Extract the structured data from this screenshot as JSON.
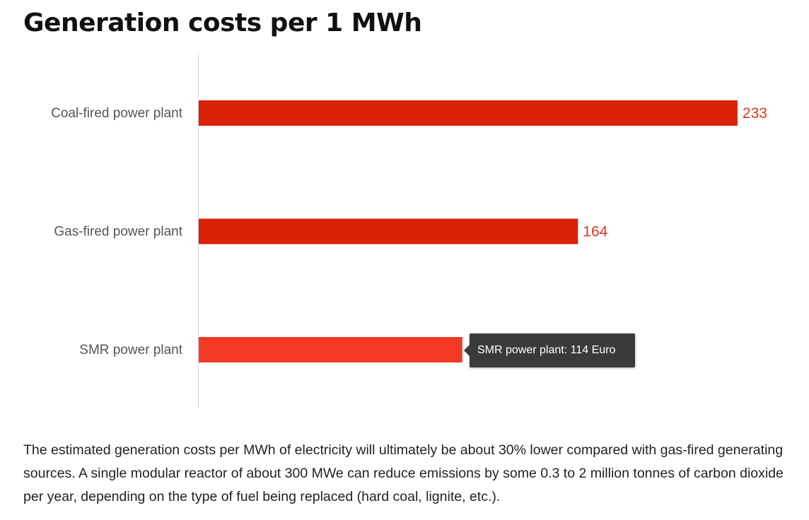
{
  "title": "Generation costs per 1 MWh",
  "description": "The estimated generation costs per MWh of electricity will ultimately be about 30% lower compared with gas-fired generating sources. A single modular reactor of about 300 MWe can reduce emissions by some 0.3 to 2 million tonnes of carbon dioxide per year, depending on the type of fuel being replaced (hard coal, lignite, etc.).",
  "tooltip": {
    "text": "SMR power plant: 114 Euro"
  },
  "colors": {
    "bar": "#da2006",
    "bar_highlight": "#f43a22",
    "value_label": "#d8391f",
    "axis_line": "#ccd6eb",
    "tooltip_bg": "#3a3a3a"
  },
  "chart_data": {
    "type": "bar",
    "orientation": "horizontal",
    "categories": [
      "Coal-fired power plant",
      "Gas-fired power plant",
      "SMR power plant"
    ],
    "values": [
      233,
      164,
      114
    ],
    "highlighted_index": 2,
    "unit": "Euro",
    "title": "Generation costs per 1 MWh",
    "xlabel": "",
    "ylabel": "",
    "xlim": [
      0,
      250
    ],
    "grid": false,
    "data_labels": true
  }
}
